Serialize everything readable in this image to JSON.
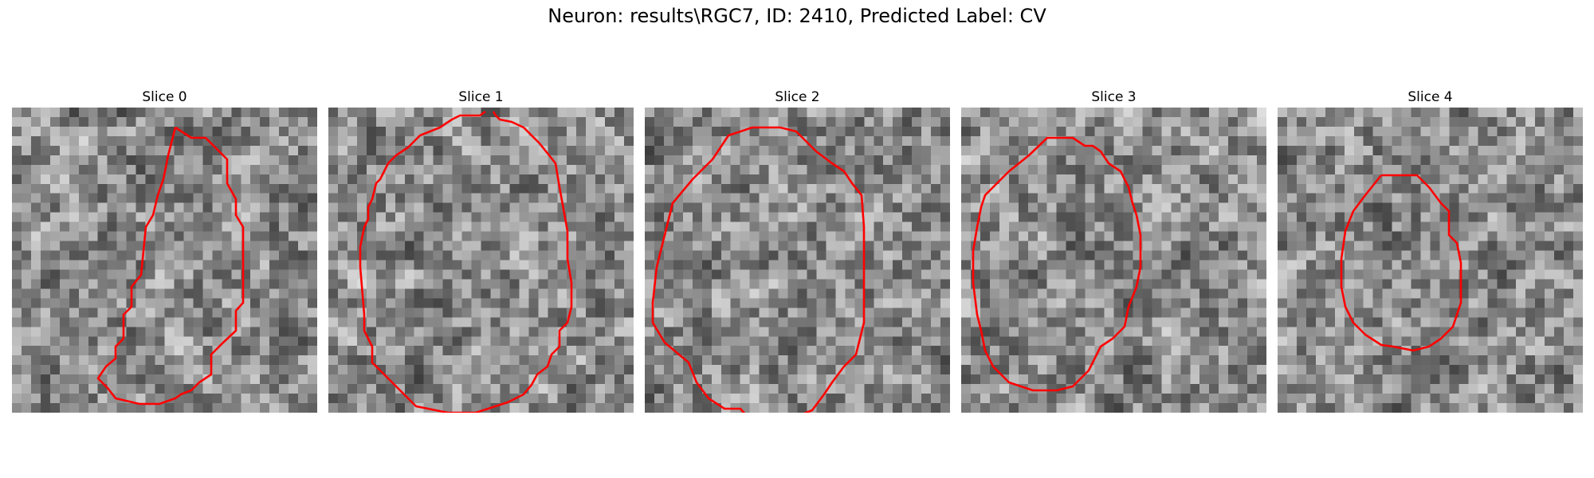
{
  "figure": {
    "title": "Neuron: results\\RGC7, ID: 2410, Predicted Label: CV"
  },
  "colors": {
    "contour": "#ff0000",
    "colormap": "gray"
  },
  "slices": [
    {
      "label": "Slice 0",
      "contour_style": "red outline, offset right, irregular"
    },
    {
      "label": "Slice 1",
      "contour_style": "red outline, large, open at top"
    },
    {
      "label": "Slice 2",
      "contour_style": "red outline, large circle, open at bottom"
    },
    {
      "label": "Slice 3",
      "contour_style": "red outline, medium circle"
    },
    {
      "label": "Slice 4",
      "contour_style": "red outline, small circle"
    }
  ]
}
